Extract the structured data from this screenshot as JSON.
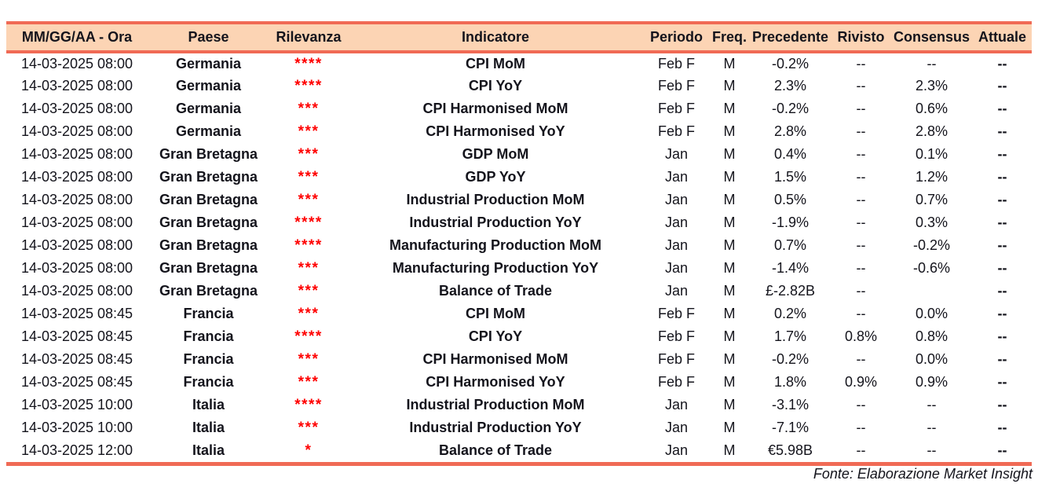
{
  "colors": {
    "accent": "#F06A55",
    "header_bg": "#FCD4B4",
    "text": "#14141c",
    "stars": "#FF0000"
  },
  "table": {
    "columns": [
      {
        "key": "datetime",
        "label": "MM/GG/AA - Ora"
      },
      {
        "key": "country",
        "label": "Paese"
      },
      {
        "key": "relevance",
        "label": "Rilevanza"
      },
      {
        "key": "indicator",
        "label": "Indicatore"
      },
      {
        "key": "period",
        "label": "Periodo"
      },
      {
        "key": "freq",
        "label": "Freq."
      },
      {
        "key": "previous",
        "label": "Precedente"
      },
      {
        "key": "revised",
        "label": "Rivisto"
      },
      {
        "key": "consensus",
        "label": "Consensus"
      },
      {
        "key": "actual",
        "label": "Attuale"
      }
    ],
    "rows": [
      {
        "datetime": "14-03-2025 08:00",
        "country": "Germania",
        "relevance": "****",
        "indicator": "CPI MoM",
        "period": "Feb F",
        "freq": "M",
        "previous": "-0.2%",
        "revised": "--",
        "consensus": "--",
        "actual": "--"
      },
      {
        "datetime": "14-03-2025 08:00",
        "country": "Germania",
        "relevance": "****",
        "indicator": "CPI YoY",
        "period": "Feb F",
        "freq": "M",
        "previous": "2.3%",
        "revised": "--",
        "consensus": "2.3%",
        "actual": "--"
      },
      {
        "datetime": "14-03-2025 08:00",
        "country": "Germania",
        "relevance": "***",
        "indicator": "CPI Harmonised MoM",
        "period": "Feb F",
        "freq": "M",
        "previous": "-0.2%",
        "revised": "--",
        "consensus": "0.6%",
        "actual": "--"
      },
      {
        "datetime": "14-03-2025 08:00",
        "country": "Germania",
        "relevance": "***",
        "indicator": "CPI Harmonised YoY",
        "period": "Feb F",
        "freq": "M",
        "previous": "2.8%",
        "revised": "--",
        "consensus": "2.8%",
        "actual": "--"
      },
      {
        "datetime": "14-03-2025 08:00",
        "country": "Gran Bretagna",
        "relevance": "***",
        "indicator": "GDP MoM",
        "period": "Jan",
        "freq": "M",
        "previous": "0.4%",
        "revised": "--",
        "consensus": "0.1%",
        "actual": "--"
      },
      {
        "datetime": "14-03-2025 08:00",
        "country": "Gran Bretagna",
        "relevance": "***",
        "indicator": "GDP YoY",
        "period": "Jan",
        "freq": "M",
        "previous": "1.5%",
        "revised": "--",
        "consensus": "1.2%",
        "actual": "--"
      },
      {
        "datetime": "14-03-2025 08:00",
        "country": "Gran Bretagna",
        "relevance": "***",
        "indicator": "Industrial Production MoM",
        "period": "Jan",
        "freq": "M",
        "previous": "0.5%",
        "revised": "--",
        "consensus": "0.7%",
        "actual": "--"
      },
      {
        "datetime": "14-03-2025 08:00",
        "country": "Gran Bretagna",
        "relevance": "****",
        "indicator": "Industrial Production YoY",
        "period": "Jan",
        "freq": "M",
        "previous": "-1.9%",
        "revised": "--",
        "consensus": "0.3%",
        "actual": "--"
      },
      {
        "datetime": "14-03-2025 08:00",
        "country": "Gran Bretagna",
        "relevance": "****",
        "indicator": "Manufacturing Production MoM",
        "period": "Jan",
        "freq": "M",
        "previous": "0.7%",
        "revised": "--",
        "consensus": "-0.2%",
        "actual": "--"
      },
      {
        "datetime": "14-03-2025 08:00",
        "country": "Gran Bretagna",
        "relevance": "***",
        "indicator": "Manufacturing Production YoY",
        "period": "Jan",
        "freq": "M",
        "previous": "-1.4%",
        "revised": "--",
        "consensus": "-0.6%",
        "actual": "--"
      },
      {
        "datetime": "14-03-2025 08:00",
        "country": "Gran Bretagna",
        "relevance": "***",
        "indicator": "Balance of Trade",
        "period": "Jan",
        "freq": "M",
        "previous": "£-2.82B",
        "revised": "--",
        "consensus": "",
        "actual": "--"
      },
      {
        "datetime": "14-03-2025 08:45",
        "country": "Francia",
        "relevance": "***",
        "indicator": "CPI MoM",
        "period": "Feb F",
        "freq": "M",
        "previous": "0.2%",
        "revised": "--",
        "consensus": "0.0%",
        "actual": "--"
      },
      {
        "datetime": "14-03-2025 08:45",
        "country": "Francia",
        "relevance": "****",
        "indicator": "CPI YoY",
        "period": "Feb F",
        "freq": "M",
        "previous": "1.7%",
        "revised": "0.8%",
        "consensus": "0.8%",
        "actual": "--"
      },
      {
        "datetime": "14-03-2025 08:45",
        "country": "Francia",
        "relevance": "***",
        "indicator": "CPI Harmonised MoM",
        "period": "Feb F",
        "freq": "M",
        "previous": "-0.2%",
        "revised": "--",
        "consensus": "0.0%",
        "actual": "--"
      },
      {
        "datetime": "14-03-2025 08:45",
        "country": "Francia",
        "relevance": "***",
        "indicator": "CPI Harmonised YoY",
        "period": "Feb F",
        "freq": "M",
        "previous": "1.8%",
        "revised": "0.9%",
        "consensus": "0.9%",
        "actual": "--"
      },
      {
        "datetime": "14-03-2025 10:00",
        "country": "Italia",
        "relevance": "****",
        "indicator": "Industrial Production MoM",
        "period": "Jan",
        "freq": "M",
        "previous": "-3.1%",
        "revised": "--",
        "consensus": "--",
        "actual": "--"
      },
      {
        "datetime": "14-03-2025 10:00",
        "country": "Italia",
        "relevance": "***",
        "indicator": "Industrial Production YoY",
        "period": "Jan",
        "freq": "M",
        "previous": "-7.1%",
        "revised": "--",
        "consensus": "--",
        "actual": "--"
      },
      {
        "datetime": "14-03-2025 12:00",
        "country": "Italia",
        "relevance": "*",
        "indicator": "Balance of Trade",
        "period": "Jan",
        "freq": "M",
        "previous": "€5.98B",
        "revised": "--",
        "consensus": "--",
        "actual": "--"
      }
    ]
  },
  "footer": {
    "source": "Fonte: Elaborazione Market Insight"
  }
}
